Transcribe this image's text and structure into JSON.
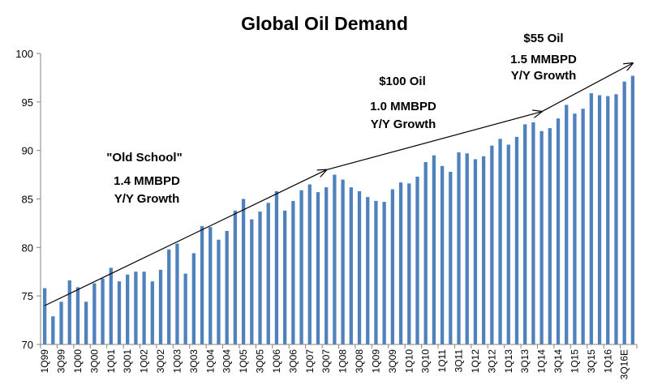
{
  "chart_data": {
    "type": "bar",
    "title": "Global Oil Demand",
    "xlabel": "",
    "ylabel": "",
    "ylim": [
      70,
      100
    ],
    "yticks": [
      70,
      75,
      80,
      85,
      90,
      95,
      100
    ],
    "bar_color": "#4f81bd",
    "categories": [
      "1Q99",
      "2Q99",
      "3Q99",
      "4Q99",
      "1Q00",
      "2Q00",
      "3Q00",
      "4Q00",
      "1Q01",
      "2Q01",
      "3Q01",
      "4Q01",
      "1Q02",
      "2Q02",
      "3Q02",
      "4Q02",
      "1Q03",
      "2Q03",
      "3Q03",
      "4Q03",
      "1Q04",
      "2Q04",
      "3Q04",
      "4Q04",
      "1Q05",
      "2Q05",
      "3Q05",
      "4Q05",
      "1Q06",
      "2Q06",
      "3Q06",
      "4Q06",
      "1Q07",
      "2Q07",
      "3Q07",
      "4Q07",
      "1Q08",
      "2Q08",
      "3Q08",
      "4Q08",
      "1Q09",
      "2Q09",
      "3Q09",
      "4Q09",
      "1Q10",
      "2Q10",
      "3Q10",
      "4Q10",
      "1Q11",
      "2Q11",
      "3Q11",
      "4Q11",
      "1Q12",
      "2Q12",
      "3Q12",
      "4Q12",
      "1Q13",
      "2Q13",
      "3Q13",
      "4Q13",
      "1Q14",
      "2Q14",
      "3Q14",
      "4Q14",
      "1Q15",
      "2Q15",
      "3Q15",
      "4Q15",
      "1Q16",
      "2Q16",
      "3Q16E",
      "4Q16E"
    ],
    "visible_tick_labels": [
      "1Q99",
      "3Q99",
      "1Q00",
      "3Q00",
      "1Q01",
      "3Q01",
      "1Q02",
      "3Q02",
      "1Q03",
      "3Q03",
      "1Q04",
      "3Q04",
      "1Q05",
      "3Q05",
      "1Q06",
      "3Q06",
      "1Q07",
      "3Q07",
      "1Q08",
      "3Q08",
      "1Q09",
      "3Q09",
      "1Q10",
      "3Q10",
      "1Q11",
      "3Q11",
      "1Q12",
      "3Q12",
      "1Q13",
      "3Q13",
      "1Q14",
      "3Q14",
      "1Q15",
      "3Q15",
      "1Q16",
      "3Q16E"
    ],
    "values": [
      75.8,
      72.9,
      74.4,
      76.6,
      75.9,
      74.4,
      76.3,
      76.8,
      77.9,
      76.5,
      77.2,
      77.5,
      77.5,
      76.5,
      77.7,
      79.8,
      80.4,
      77.3,
      79.4,
      82.2,
      82.1,
      80.8,
      81.7,
      83.8,
      85.0,
      82.9,
      83.7,
      84.6,
      85.8,
      83.8,
      84.8,
      85.9,
      86.5,
      85.7,
      86.2,
      87.5,
      87.0,
      86.2,
      85.8,
      85.2,
      84.8,
      84.7,
      86.0,
      86.7,
      86.6,
      87.3,
      88.8,
      89.5,
      88.4,
      87.8,
      89.8,
      89.7,
      89.1,
      89.4,
      90.5,
      91.2,
      90.6,
      91.4,
      92.7,
      92.9,
      92.0,
      92.3,
      93.3,
      94.7,
      93.8,
      94.3,
      95.9,
      95.7,
      95.6,
      95.8,
      97.1,
      97.7
    ],
    "annotations": [
      {
        "lines": [
          "\"Old School\"",
          "1.4 MMBPD",
          "Y/Y Growth"
        ]
      },
      {
        "lines": [
          "$100 Oil",
          "1.0 MMBPD",
          "Y/Y Growth"
        ]
      },
      {
        "lines": [
          "$55 Oil",
          "1.5 MMBPD",
          "Y/Y Growth"
        ]
      }
    ],
    "trend_arrows": [
      {
        "from": {
          "x": "1Q99",
          "y": 74.0
        },
        "to": {
          "x": "3Q07",
          "y": 88.0
        }
      },
      {
        "from": {
          "x": "3Q07",
          "y": 88.0
        },
        "to": {
          "x": "1Q14",
          "y": 94.0
        }
      },
      {
        "from": {
          "x": "1Q14",
          "y": 94.0
        },
        "to": {
          "x": "4Q16E",
          "y": 99.0
        }
      }
    ]
  }
}
